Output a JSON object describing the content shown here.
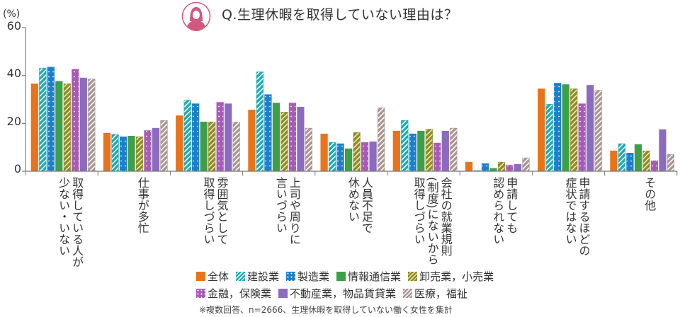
{
  "chart_data": {
    "type": "bar",
    "title": "Q.生理休暇を取得していない理由は？",
    "ylabel": "(%)",
    "ylim": [
      0,
      60
    ],
    "yticks": [
      "0",
      "20",
      "40",
      "60"
    ],
    "categories": [
      "取得している人が\n少ない・いない",
      "仕事が多忙",
      "雰囲気として\n取得しづらい",
      "上司や周りに\n言いづらい",
      "人員不足で\n休めない",
      "会社の就業規則\n(制度)にないから\n取得しづらい",
      "申請しても\n認められない",
      "申請するほどの\n症状ではない",
      "その他"
    ],
    "series": [
      {
        "name": "全体",
        "color": "#E8731A",
        "pattern": "solid",
        "values": [
          36.5,
          15.9,
          23.2,
          25.6,
          15.6,
          16.8,
          3.8,
          34.4,
          8.5
        ]
      },
      {
        "name": "建設業",
        "color": "#1AAAB5",
        "pattern": "hatch",
        "values": [
          43,
          15.4,
          29.7,
          41.5,
          12,
          21.2,
          0.3,
          28,
          11.5
        ]
      },
      {
        "name": "製造業",
        "color": "#1C7FCB",
        "pattern": "dots",
        "values": [
          43.5,
          14.4,
          28.2,
          32,
          11.5,
          15.6,
          3.2,
          36.8,
          7.6
        ]
      },
      {
        "name": "情報通信業",
        "color": "#3F9E48",
        "pattern": "solid",
        "values": [
          37.6,
          14.7,
          20.6,
          28.5,
          9.4,
          16.8,
          1.2,
          36.2,
          11.2
        ]
      },
      {
        "name": "卸売業，小売業",
        "color": "#8C8A2E",
        "pattern": "hatch",
        "values": [
          36.5,
          14.4,
          20.6,
          24.7,
          16.2,
          17.6,
          3.8,
          34.4,
          8.5
        ]
      },
      {
        "name": "金融，保険業",
        "color": "#A85BB5",
        "pattern": "dots",
        "values": [
          42.6,
          17,
          28.8,
          28.5,
          12,
          11.8,
          2.6,
          28.2,
          4.4
        ]
      },
      {
        "name": "不動産業，物品賃貸業",
        "color": "#8B6BBE",
        "pattern": "solid",
        "values": [
          39,
          18,
          28.2,
          26.8,
          12.3,
          16.8,
          2.9,
          35.9,
          17.4
        ]
      },
      {
        "name": "医療，福祉",
        "color": "#A89590",
        "pattern": "hatch",
        "values": [
          38.5,
          21.2,
          20.6,
          18,
          26.5,
          18,
          5.6,
          33.8,
          7
        ]
      }
    ],
    "legend_position": "bottom",
    "grid": false
  },
  "icon": "woman-avatar-icon",
  "avatar_color": "#D4587E",
  "note": "※複数回答、n=2666、生理休暇を取得していない働く女性を集計"
}
